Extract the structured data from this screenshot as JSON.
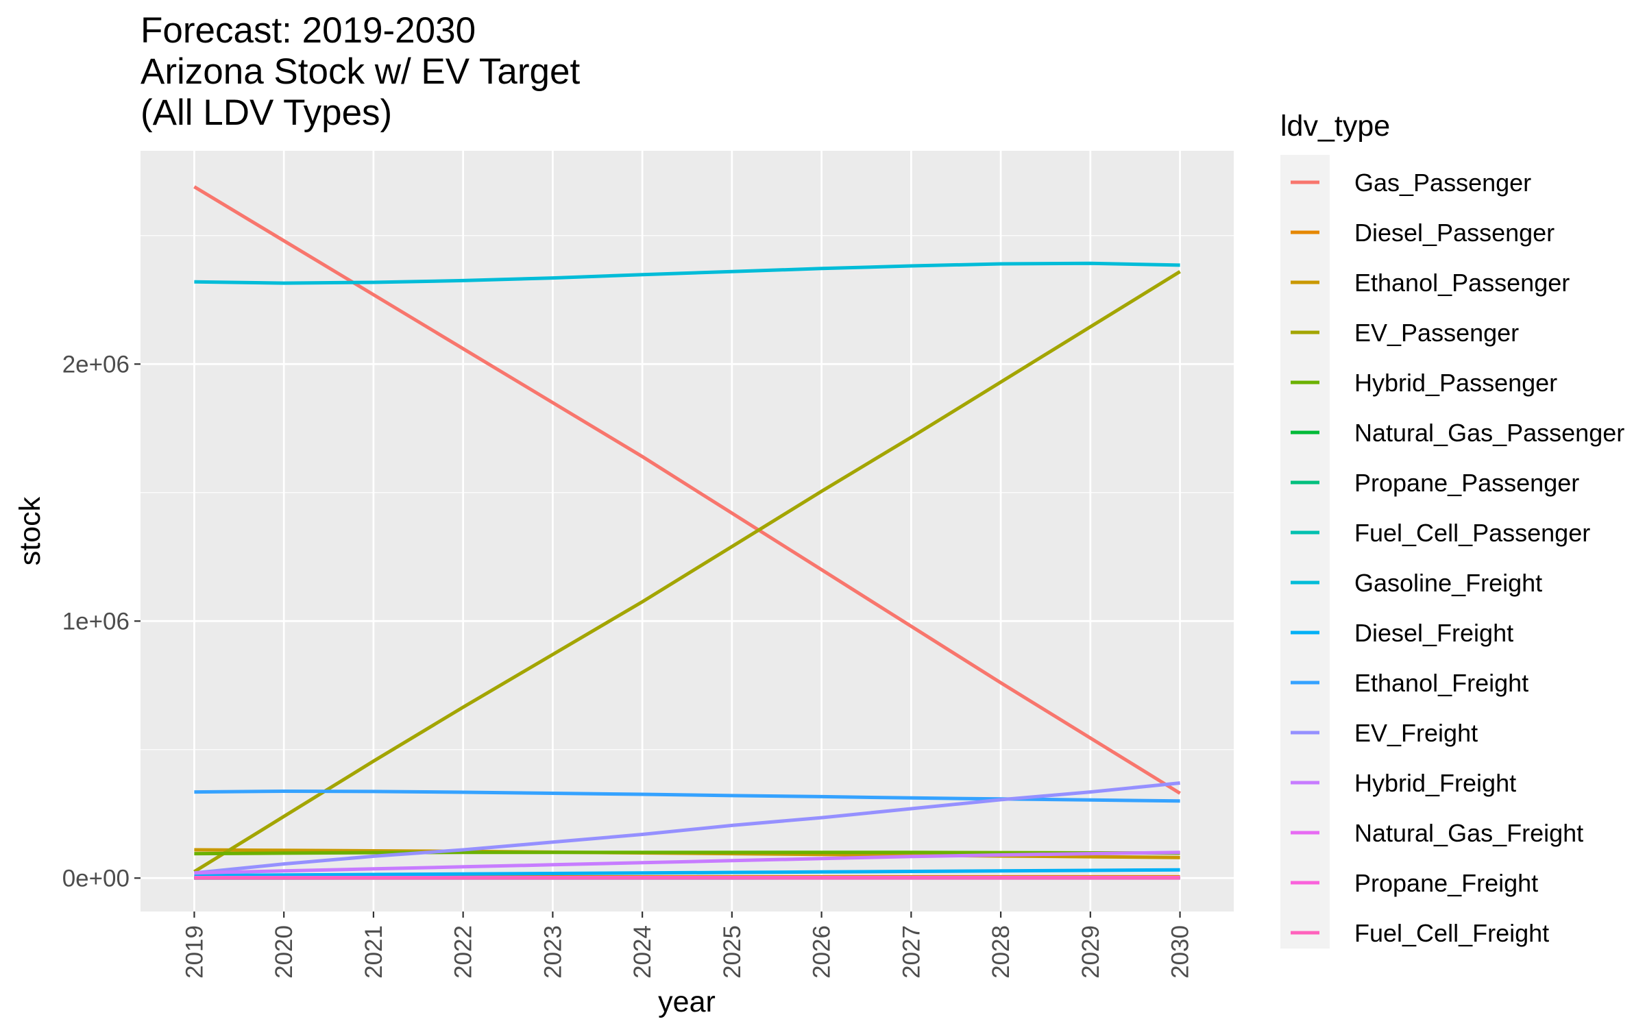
{
  "chart_data": {
    "type": "line",
    "title_lines": [
      "Forecast: 2019-2030",
      "Arizona Stock w/ EV Target",
      "(All LDV Types)"
    ],
    "xlabel": "year",
    "ylabel": "stock",
    "legend_title": "ldv_type",
    "legend_position": "right",
    "grid": true,
    "xlim": [
      2018.4,
      2030.6
    ],
    "ylim": [
      -130000,
      2830000
    ],
    "y_ticks": [
      0,
      1000000,
      2000000
    ],
    "y_tick_labels": [
      "0e+00",
      "1e+06",
      "2e+06"
    ],
    "x": [
      2019,
      2020,
      2021,
      2022,
      2023,
      2024,
      2025,
      2026,
      2027,
      2028,
      2029,
      2030
    ],
    "x_tick_labels": [
      "2019",
      "2020",
      "2021",
      "2022",
      "2023",
      "2024",
      "2025",
      "2026",
      "2027",
      "2028",
      "2029",
      "2030"
    ],
    "series": [
      {
        "name": "Gas_Passenger",
        "color": "#F8766D",
        "values": [
          2690000,
          2480000,
          2270000,
          2060000,
          1850000,
          1640000,
          1420000,
          1200000,
          980000,
          760000,
          545000,
          330000
        ]
      },
      {
        "name": "Diesel_Passenger",
        "color": "#E58700",
        "values": [
          5000,
          5000,
          5000,
          5000,
          5000,
          5000,
          5000,
          5000,
          5000,
          5000,
          5000,
          5000
        ]
      },
      {
        "name": "Ethanol_Passenger",
        "color": "#C99800",
        "values": [
          110000,
          108000,
          106000,
          104000,
          101000,
          98000,
          95000,
          92000,
          89000,
          86000,
          83000,
          80000
        ]
      },
      {
        "name": "EV_Passenger",
        "color": "#A3A500",
        "values": [
          25000,
          240000,
          455000,
          665000,
          870000,
          1075000,
          1290000,
          1505000,
          1715000,
          1930000,
          2145000,
          2360000
        ]
      },
      {
        "name": "Hybrid_Passenger",
        "color": "#6BB100",
        "values": [
          95000,
          97000,
          99000,
          100000,
          100000,
          100000,
          100000,
          100000,
          100000,
          99000,
          98000,
          97000
        ]
      },
      {
        "name": "Natural_Gas_Passenger",
        "color": "#00BA38",
        "values": [
          1000,
          1000,
          1000,
          1000,
          1000,
          1000,
          1000,
          1000,
          1000,
          1000,
          1000,
          1000
        ]
      },
      {
        "name": "Propane_Passenger",
        "color": "#00BF7D",
        "values": [
          500,
          500,
          500,
          500,
          500,
          500,
          500,
          500,
          500,
          500,
          500,
          500
        ]
      },
      {
        "name": "Fuel_Cell_Passenger",
        "color": "#00C0AF",
        "values": [
          200,
          250,
          300,
          350,
          400,
          450,
          500,
          550,
          600,
          650,
          700,
          750
        ]
      },
      {
        "name": "Gasoline_Freight",
        "color": "#00BCD8",
        "values": [
          2320000,
          2315000,
          2318000,
          2325000,
          2335000,
          2348000,
          2360000,
          2372000,
          2382000,
          2390000,
          2392000,
          2385000
        ]
      },
      {
        "name": "Diesel_Freight",
        "color": "#00B0F6",
        "values": [
          10000,
          12000,
          14000,
          16000,
          18000,
          20000,
          22000,
          24000,
          26000,
          28000,
          30000,
          32000
        ]
      },
      {
        "name": "Ethanol_Freight",
        "color": "#35A2FF",
        "values": [
          335000,
          338000,
          337000,
          334000,
          330000,
          326000,
          321000,
          317000,
          312000,
          308000,
          304000,
          300000
        ]
      },
      {
        "name": "EV_Freight",
        "color": "#9590FF",
        "values": [
          20000,
          55000,
          85000,
          110000,
          140000,
          170000,
          205000,
          235000,
          270000,
          305000,
          335000,
          370000
        ]
      },
      {
        "name": "Hybrid_Freight",
        "color": "#C77CFF",
        "values": [
          20000,
          28000,
          36000,
          44000,
          52000,
          60000,
          68000,
          76000,
          84000,
          90000,
          95000,
          100000
        ]
      },
      {
        "name": "Natural_Gas_Freight",
        "color": "#E76BF3",
        "values": [
          2000,
          2000,
          2000,
          2000,
          2000,
          2000,
          2000,
          2000,
          2000,
          2000,
          2000,
          2000
        ]
      },
      {
        "name": "Propane_Freight",
        "color": "#FA62DB",
        "values": [
          1000,
          1000,
          1000,
          1000,
          1000,
          1000,
          1000,
          1000,
          1000,
          1000,
          1000,
          1000
        ]
      },
      {
        "name": "Fuel_Cell_Freight",
        "color": "#FF62BC",
        "values": [
          500,
          500,
          500,
          500,
          500,
          500,
          500,
          500,
          500,
          500,
          500,
          500
        ]
      }
    ]
  }
}
